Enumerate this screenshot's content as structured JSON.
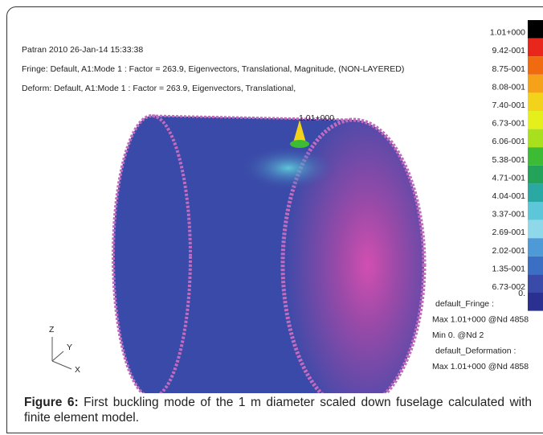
{
  "header": {
    "lines": [
      "Patran 2010 26-Jan-14 15:33:38",
      "Fringe: Default, A1:Mode 1 : Factor = 263.9, Eigenvectors, Translational, Magnitude, (NON-LAYERED)",
      "Deform: Default, A1:Mode 1 : Factor = 263.9, Eigenvectors, Translational,"
    ]
  },
  "peak_label": "1.01+000",
  "legend": {
    "labels": [
      "1.01+000",
      "9.42-001",
      "8.75-001",
      "8.08-001",
      "7.40-001",
      "6.73-001",
      "6.06-001",
      "5.38-001",
      "4.71-001",
      "4.04-001",
      "3.37-001",
      "2.69-001",
      "2.02-001",
      "1.35-001",
      "6.73-002",
      "0."
    ],
    "colors": [
      "#000000",
      "#e8261c",
      "#f06a10",
      "#f5a11a",
      "#f2d21a",
      "#e5ef1c",
      "#a8e01e",
      "#3dbb35",
      "#23a25a",
      "#2aa9a4",
      "#5dc6d8",
      "#8fd8ea",
      "#4e9ad6",
      "#3a6fc4",
      "#3a4aa8",
      "#2a3090"
    ]
  },
  "info": [
    "default_Fringe :",
    "Max 1.01+000 @Nd 4858",
    "Min 0. @Nd 2",
    "default_Deformation :",
    "Max 1.01+000 @Nd 4858"
  ],
  "axes": {
    "z": "Z",
    "y": "Y",
    "x": "X"
  },
  "caption": {
    "label": "Figure 6:",
    "text": " First buckling mode of the 1 m diameter scaled down fuselage calculated with finite element model."
  }
}
